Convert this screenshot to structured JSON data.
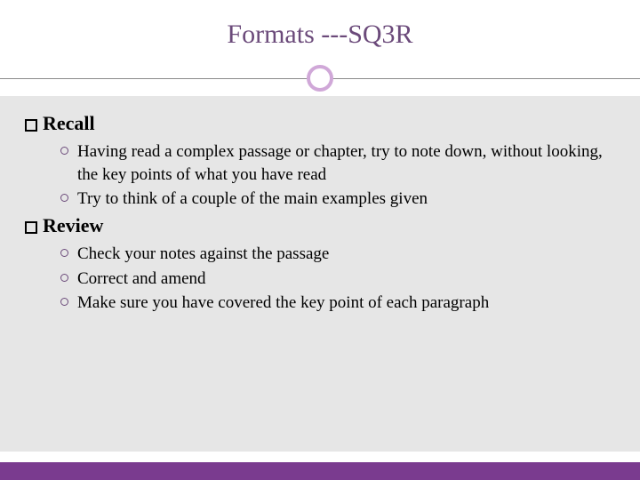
{
  "slide": {
    "title": "Formats ---SQ3R",
    "title_color": "#6b4a7a",
    "title_fontsize": 30,
    "accent_circle_color": "#d0a8d8",
    "divider_color": "#8a8a8a",
    "content_bg": "#e6e6e6",
    "footer_color": "#7a3b8f",
    "bullet_circle_color": "#6b4a7a",
    "body_fontsize": 19,
    "header_fontsize": 22,
    "sections": [
      {
        "title": "Recall",
        "items": [
          "Having read a complex passage or chapter, try to note down, without looking, the key points of what you have read",
          "Try to think of a couple of the main examples given"
        ]
      },
      {
        "title": "Review",
        "items": [
          "Check your notes against the passage",
          "Correct and amend",
          "Make sure you have covered the key point of each paragraph"
        ]
      }
    ]
  }
}
